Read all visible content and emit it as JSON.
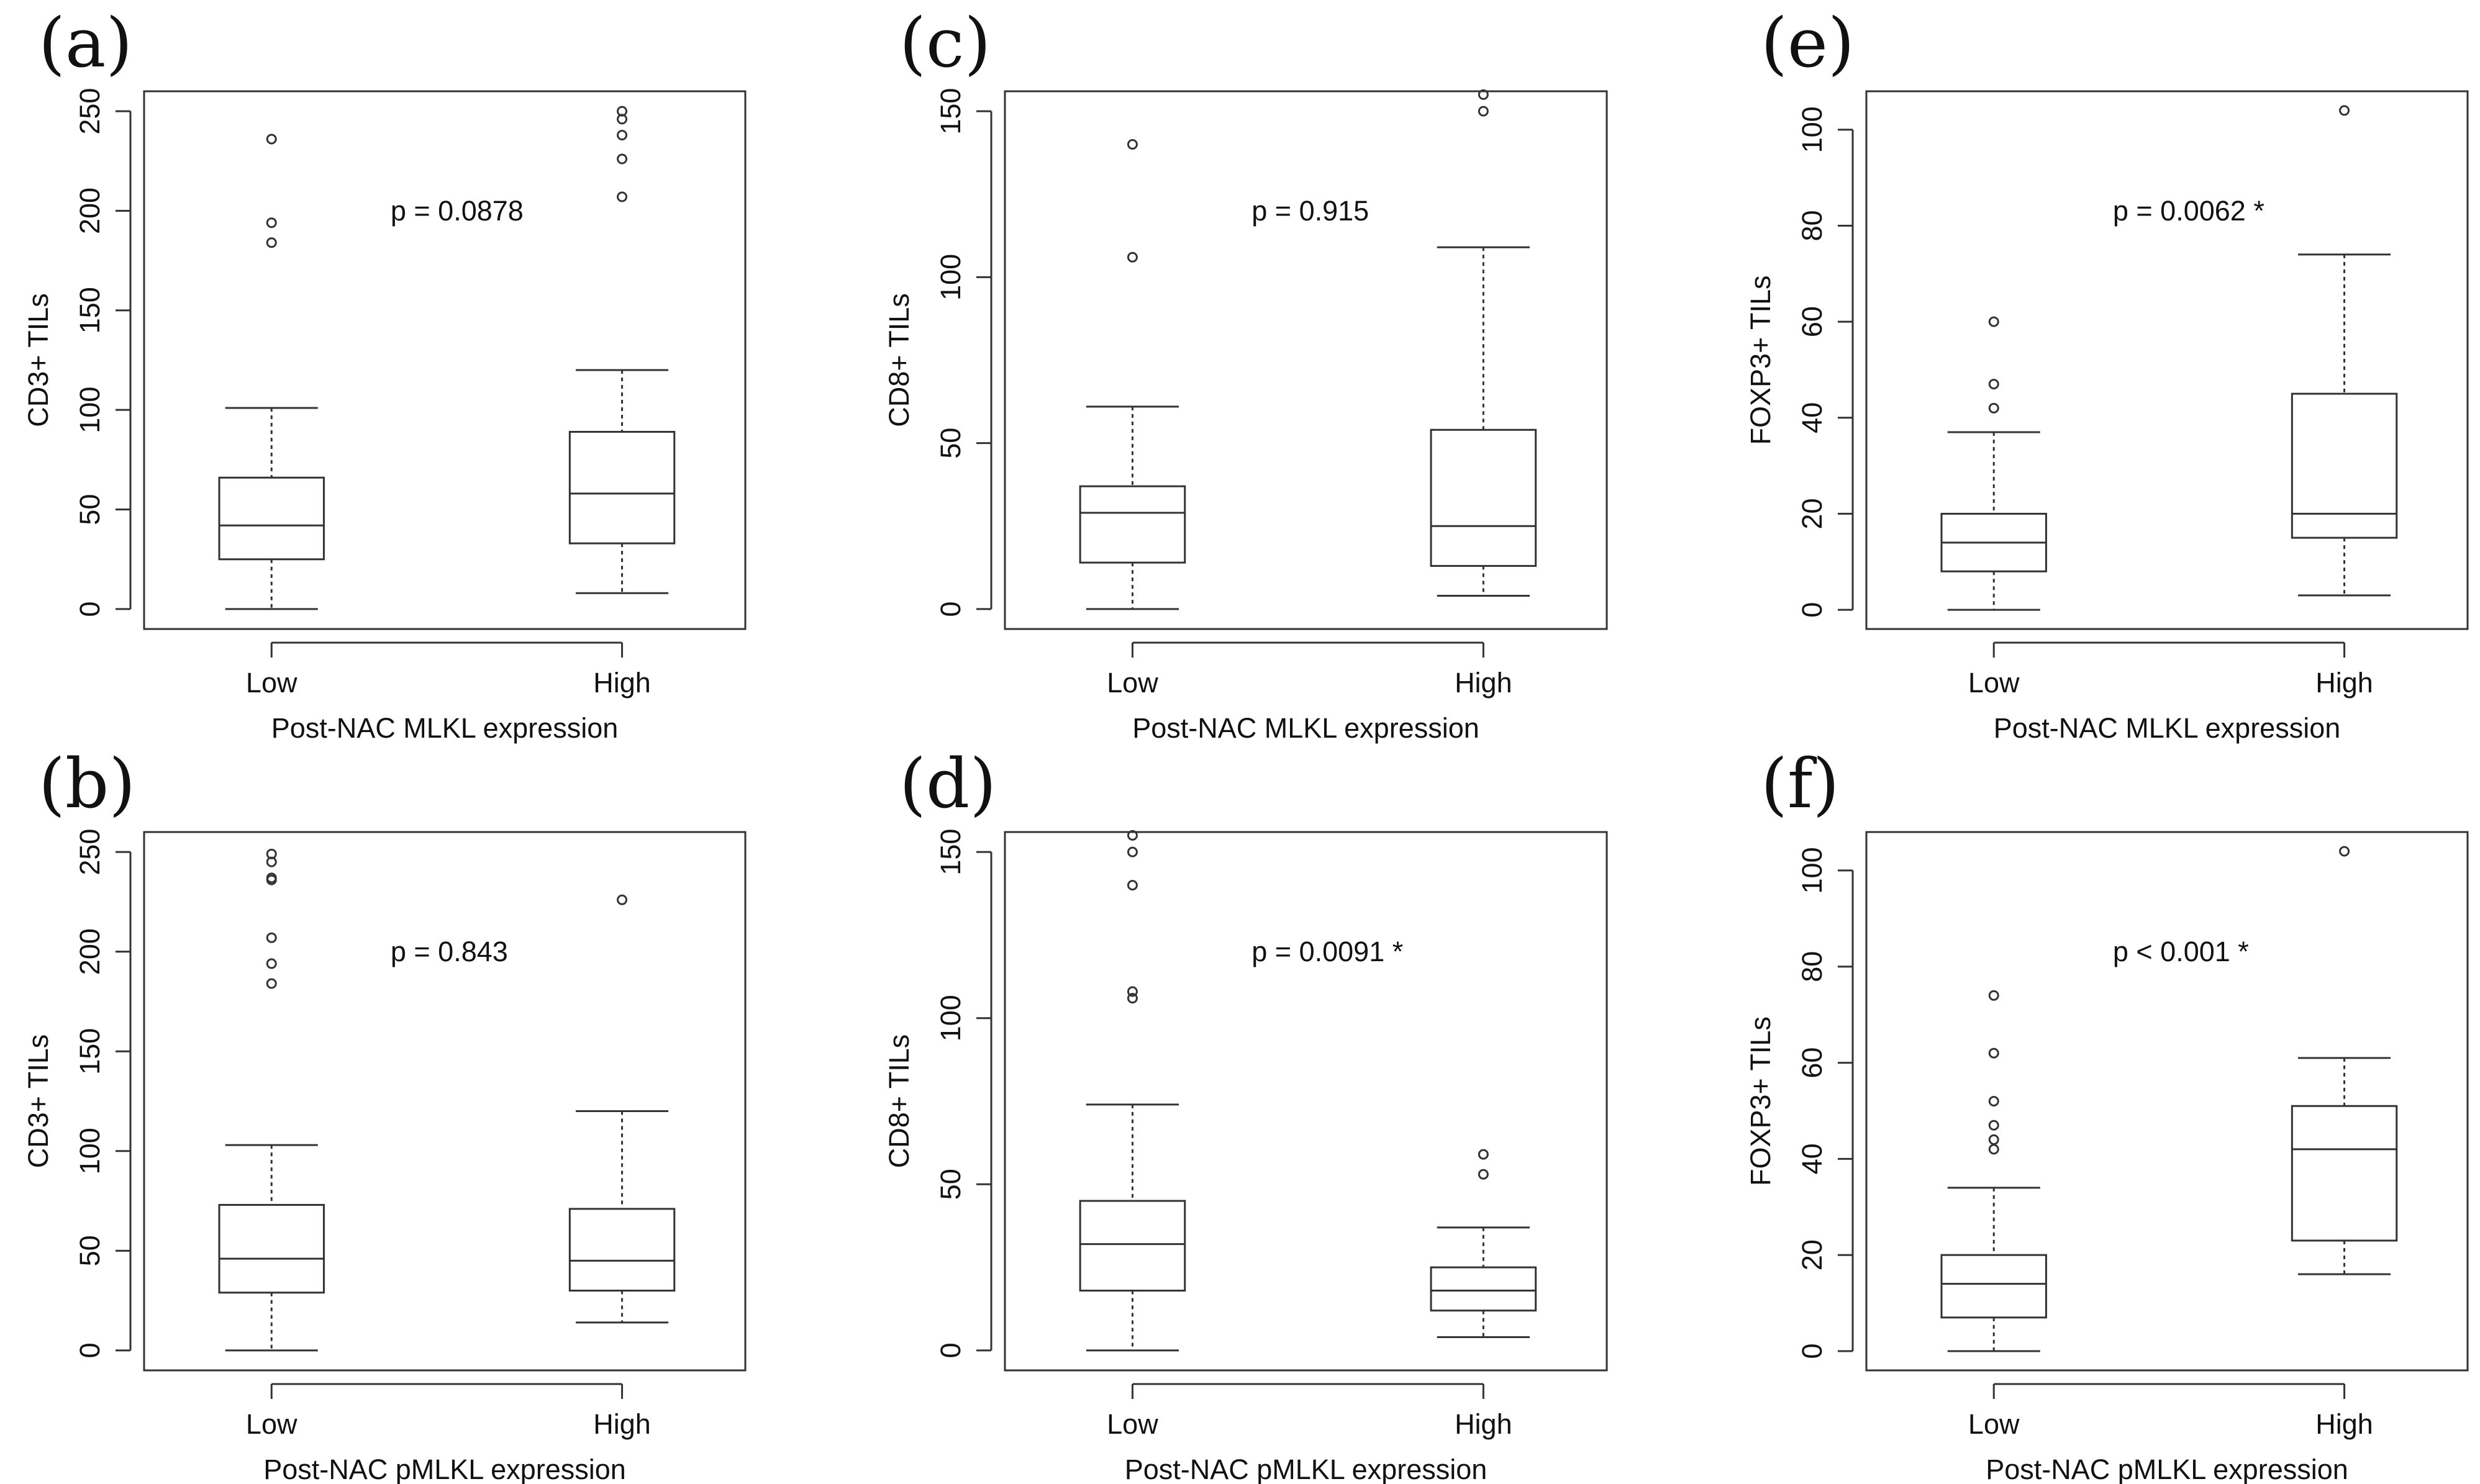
{
  "chart_data": [
    {
      "type": "box",
      "label": "(a)",
      "title": "",
      "xlabel": "Post-NAC MLKL expression",
      "ylabel": "CD3+ TILs",
      "ylim": [
        -10,
        260
      ],
      "yticks": [
        0,
        50,
        100,
        150,
        200,
        250
      ],
      "annotation": "p = 0.0878",
      "categories": [
        "Low",
        "High"
      ],
      "boxes": [
        {
          "min": 0,
          "q1": 25,
          "median": 42,
          "q3": 66,
          "max": 101,
          "outliers": [
            184,
            194,
            236
          ]
        },
        {
          "min": 8,
          "q1": 33,
          "median": 58,
          "q3": 89,
          "max": 120,
          "outliers": [
            207,
            226,
            238,
            246,
            250
          ]
        }
      ]
    },
    {
      "type": "box",
      "label": "(b)",
      "title": "",
      "xlabel": "Post-NAC pMLKL expression",
      "ylabel": "CD3+ TILs",
      "ylim": [
        -10,
        260
      ],
      "yticks": [
        0,
        50,
        100,
        150,
        200,
        250
      ],
      "annotation": "p = 0.843",
      "categories": [
        "Low",
        "High"
      ],
      "boxes": [
        {
          "min": 0,
          "q1": 29,
          "median": 46,
          "q3": 73,
          "max": 103,
          "outliers": [
            184,
            194,
            207,
            236,
            237,
            245,
            249
          ]
        },
        {
          "min": 14,
          "q1": 30,
          "median": 45,
          "q3": 71,
          "max": 120,
          "outliers": [
            226
          ]
        }
      ]
    },
    {
      "type": "box",
      "label": "(c)",
      "title": "",
      "xlabel": "Post-NAC MLKL expression",
      "ylabel": "CD8+ TILs",
      "ylim": [
        -6,
        156
      ],
      "yticks": [
        0,
        50,
        100,
        150
      ],
      "annotation": "p = 0.915",
      "categories": [
        "Low",
        "High"
      ],
      "boxes": [
        {
          "min": 0,
          "q1": 14,
          "median": 29,
          "q3": 37,
          "max": 61,
          "outliers": [
            106,
            140
          ]
        },
        {
          "min": 4,
          "q1": 13,
          "median": 25,
          "q3": 54,
          "max": 109,
          "outliers": [
            150,
            155
          ]
        }
      ]
    },
    {
      "type": "box",
      "label": "(d)",
      "title": "",
      "xlabel": "Post-NAC pMLKL expression",
      "ylabel": "CD8+ TILs",
      "ylim": [
        -6,
        156
      ],
      "yticks": [
        0,
        50,
        100,
        150
      ],
      "annotation": "p = 0.0091 *",
      "categories": [
        "Low",
        "High"
      ],
      "boxes": [
        {
          "min": 0,
          "q1": 18,
          "median": 32,
          "q3": 45,
          "max": 74,
          "outliers": [
            106,
            108,
            140,
            150,
            155
          ]
        },
        {
          "min": 4,
          "q1": 12,
          "median": 18,
          "q3": 25,
          "max": 37,
          "outliers": [
            53,
            59
          ]
        }
      ]
    },
    {
      "type": "box",
      "label": "(e)",
      "title": "",
      "xlabel": "Post-NAC MLKL expression",
      "ylabel": "FOXP3+ TILs",
      "ylim": [
        -4,
        108
      ],
      "yticks": [
        0,
        20,
        40,
        60,
        80,
        100
      ],
      "annotation": "p = 0.0062 *",
      "categories": [
        "Low",
        "High"
      ],
      "boxes": [
        {
          "min": 0,
          "q1": 8,
          "median": 14,
          "q3": 20,
          "max": 37,
          "outliers": [
            42,
            47,
            60
          ]
        },
        {
          "min": 3,
          "q1": 15,
          "median": 20,
          "q3": 45,
          "max": 74,
          "outliers": [
            104
          ]
        }
      ]
    },
    {
      "type": "box",
      "label": "(f)",
      "title": "",
      "xlabel": "Post-NAC pMLKL expression",
      "ylabel": "FOXP3+ TILs",
      "ylim": [
        -4,
        108
      ],
      "yticks": [
        0,
        20,
        40,
        60,
        80,
        100
      ],
      "annotation": "p < 0.001 *",
      "categories": [
        "Low",
        "High"
      ],
      "boxes": [
        {
          "min": 0,
          "q1": 7,
          "median": 14,
          "q3": 20,
          "max": 34,
          "outliers": [
            42,
            44,
            47,
            52,
            62,
            74
          ]
        },
        {
          "min": 16,
          "q1": 23,
          "median": 42,
          "q3": 51,
          "max": 61,
          "outliers": [
            104
          ]
        }
      ]
    }
  ]
}
